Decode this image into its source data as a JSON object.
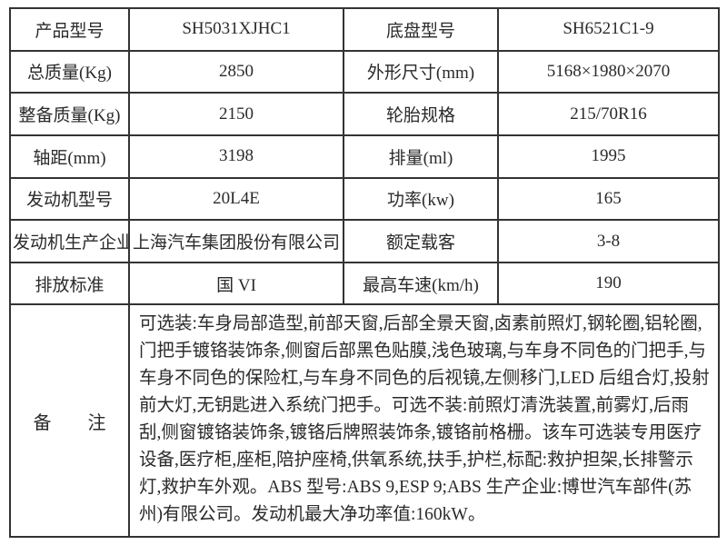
{
  "colors": {
    "border": "#333333",
    "text": "#2a2a2a",
    "background": "#ffffff"
  },
  "table": {
    "spec_rows": [
      {
        "label1": "产品型号",
        "value1": "SH5031XJHC1",
        "label2": "底盘型号",
        "value2": "SH6521C1-9"
      },
      {
        "label1": "总质量(Kg)",
        "value1": "2850",
        "label2": "外形尺寸(mm)",
        "value2": "5168×1980×2070"
      },
      {
        "label1": "整备质量(Kg)",
        "value1": "2150",
        "label2": "轮胎规格",
        "value2": "215/70R16"
      },
      {
        "label1": "轴距(mm)",
        "value1": "3198",
        "label2": "排量(ml)",
        "value2": "1995"
      },
      {
        "label1": "发动机型号",
        "value1": "20L4E",
        "label2": "功率(kw)",
        "value2": "165"
      },
      {
        "label1": "发动机生产企业",
        "value1": "上海汽车集团股份有限公司",
        "label2": "额定载客",
        "value2": "3-8"
      },
      {
        "label1": "排放标准",
        "value1": "国 VI",
        "label2": "最高车速(km/h)",
        "value2": "190"
      }
    ],
    "remark": {
      "label": "备　　注",
      "text": "可选装:车身局部造型,前部天窗,后部全景天窗,卤素前照灯,钢轮圈,铝轮圈,门把手镀铬装饰条,侧窗后部黑色贴膜,浅色玻璃,与车身不同色的门把手,与车身不同色的保险杠,与车身不同色的后视镜,左侧移门,LED 后组合灯,投射前大灯,无钥匙进入系统门把手。可选不装:前照灯清洗装置,前雾灯,后雨刮,侧窗镀铬装饰条,镀铬后牌照装饰条,镀铬前格栅。该车可选装专用医疗设备,医疗柜,座柜,陪护座椅,供氧系统,扶手,护栏,标配:救护担架,长排警示灯,救护车外观。ABS 型号:ABS 9,ESP 9;ABS 生产企业:博世汽车部件(苏州)有限公司。发动机最大净功率值:160kW。"
    }
  }
}
